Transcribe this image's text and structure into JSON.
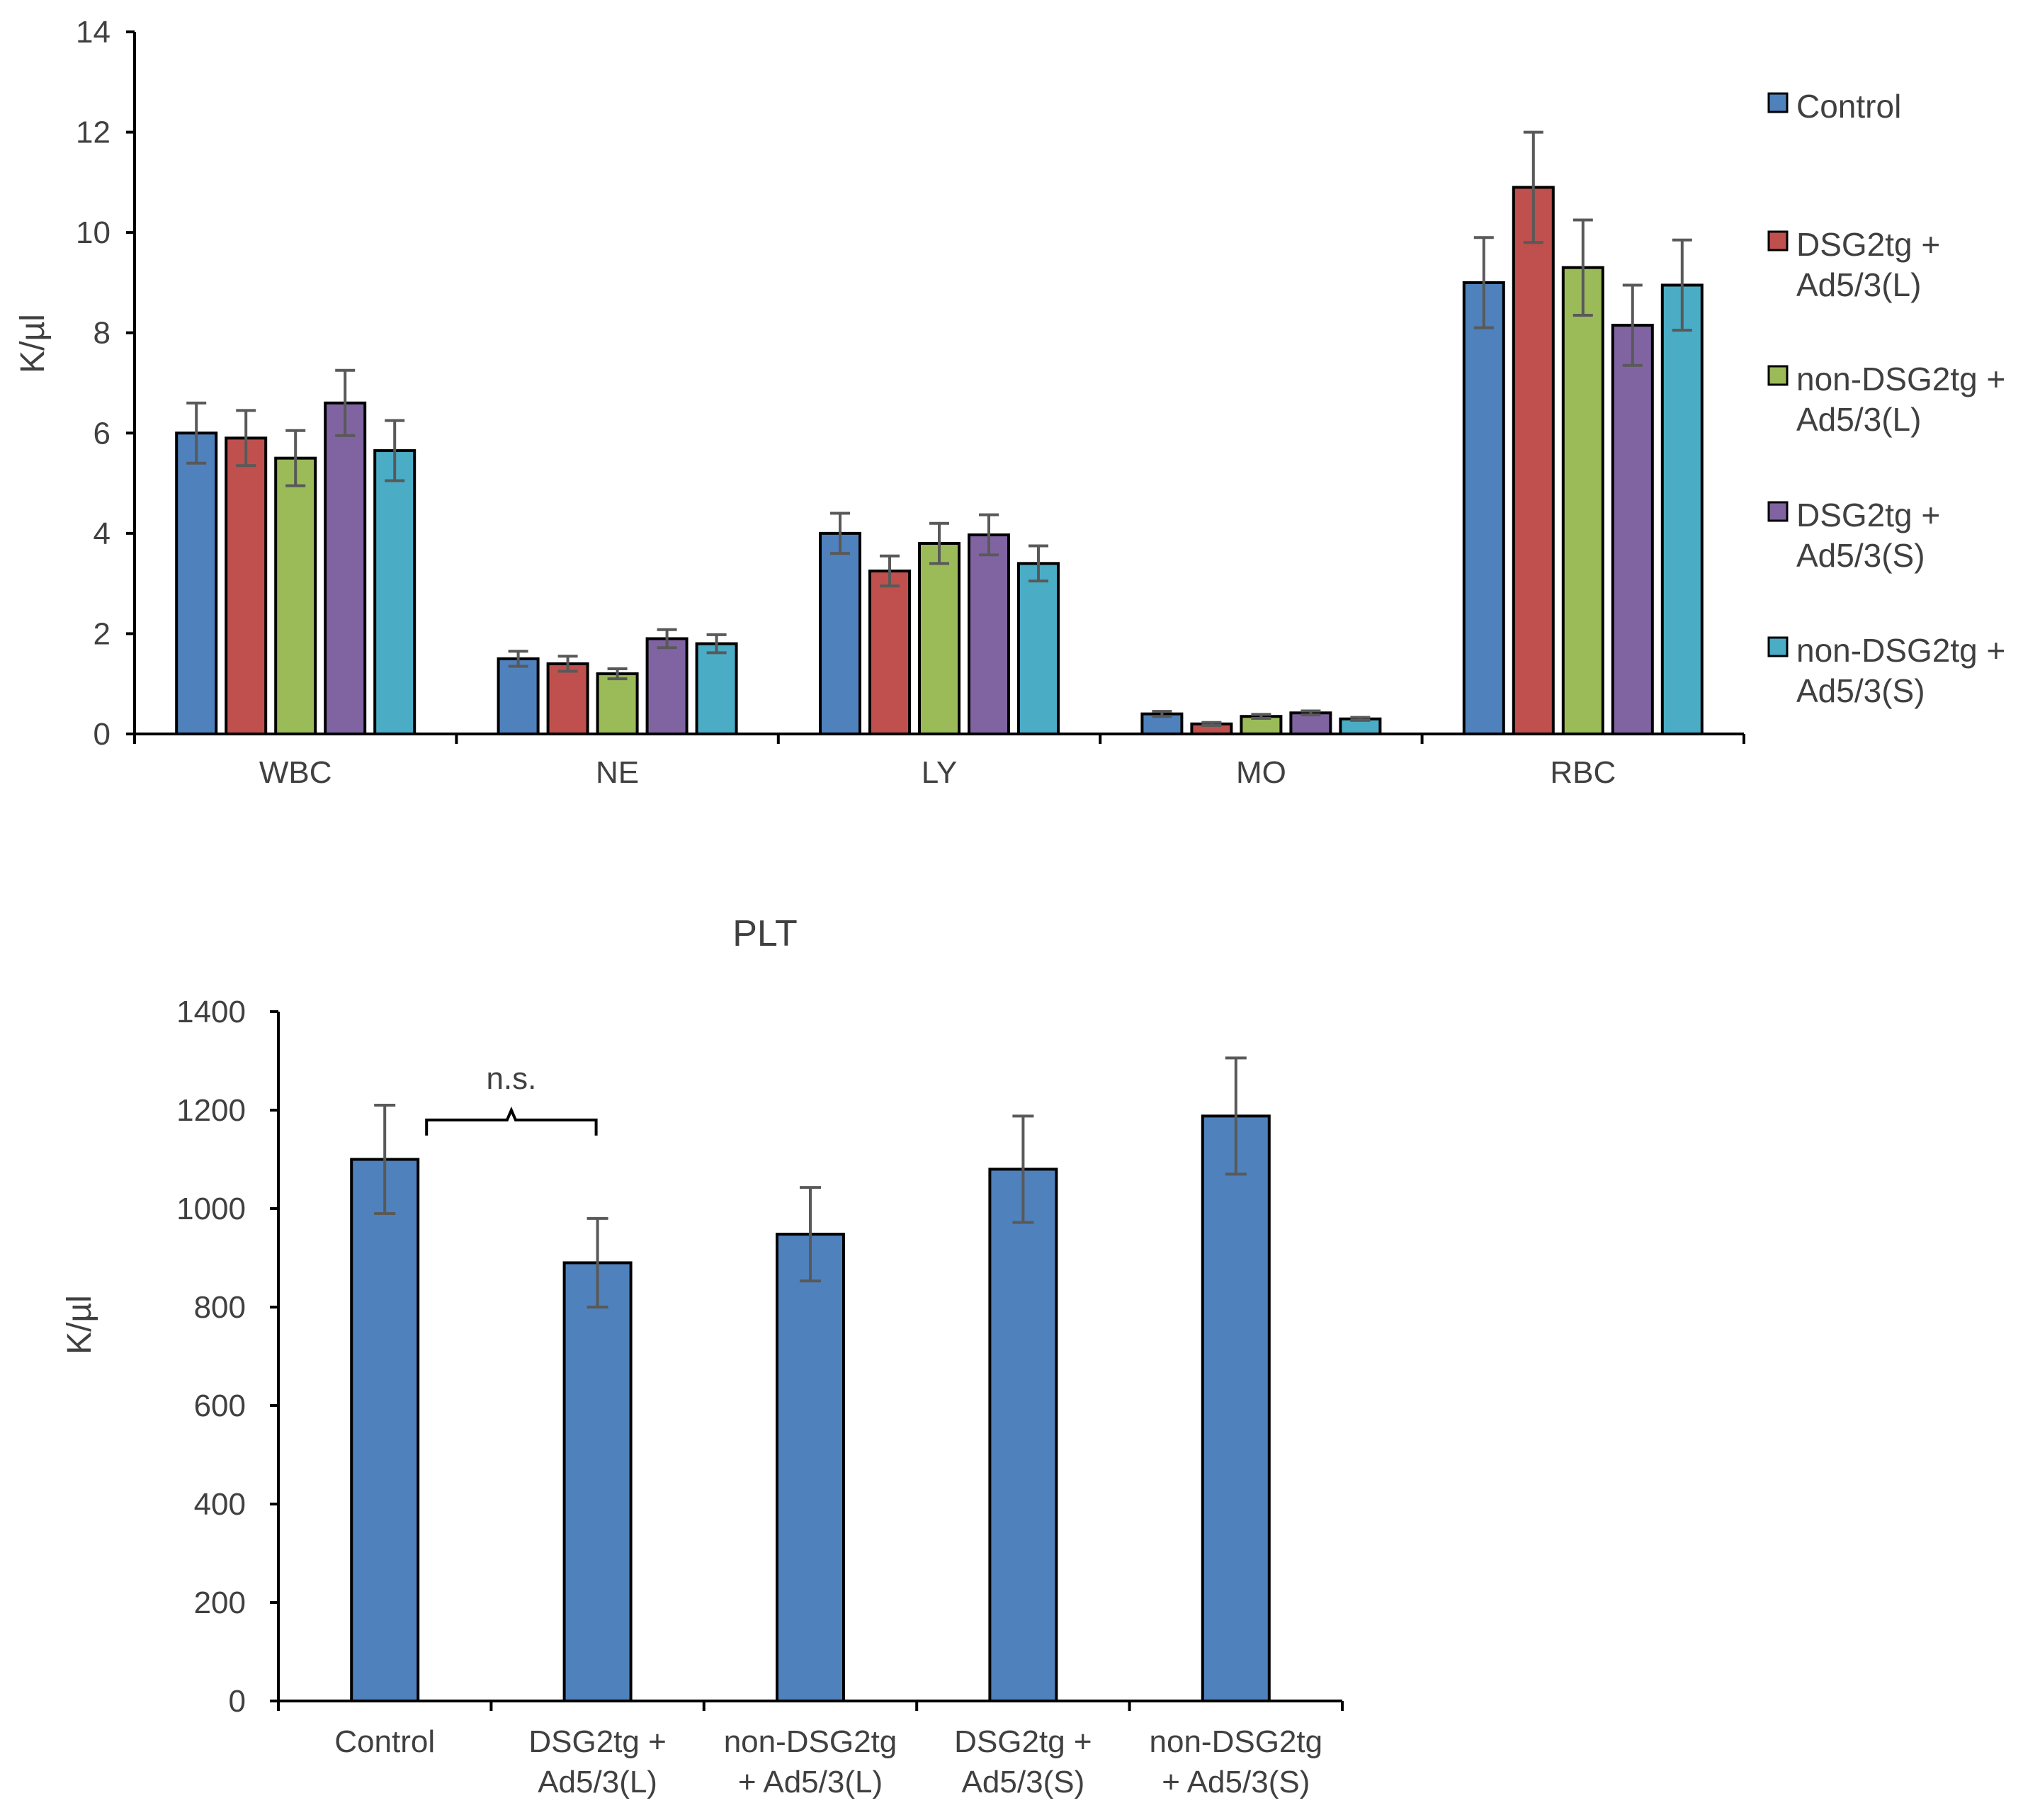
{
  "chart_data": [
    {
      "type": "bar",
      "title": "",
      "ylabel": "K/µl",
      "xlabel": "",
      "ylim": [
        0,
        14
      ],
      "yticks": [
        0,
        2,
        4,
        6,
        8,
        10,
        12,
        14
      ],
      "categories": [
        "WBC",
        "NE",
        "LY",
        "MO",
        "RBC"
      ],
      "legend_position": "right",
      "series": [
        {
          "name": "Control",
          "legend_lines": [
            "Control"
          ],
          "color": "#4f81bd",
          "values": [
            6.0,
            1.5,
            4.0,
            0.4,
            9.0
          ],
          "errors": [
            0.6,
            0.15,
            0.4,
            0.05,
            0.9
          ]
        },
        {
          "name": "DSG2tg + Ad5/3(L)",
          "legend_lines": [
            "DSG2tg +",
            "Ad5/3(L)"
          ],
          "color": "#c0504d",
          "values": [
            5.9,
            1.4,
            3.25,
            0.2,
            10.9
          ],
          "errors": [
            0.55,
            0.15,
            0.3,
            0.03,
            1.1
          ]
        },
        {
          "name": "non-DSG2tg + Ad5/3(L)",
          "legend_lines": [
            "non-DSG2tg +",
            "Ad5/3(L)"
          ],
          "color": "#9bbb59",
          "values": [
            5.5,
            1.2,
            3.8,
            0.35,
            9.3
          ],
          "errors": [
            0.55,
            0.1,
            0.4,
            0.04,
            0.95
          ]
        },
        {
          "name": "DSG2tg + Ad5/3(S)",
          "legend_lines": [
            "DSG2tg +",
            "Ad5/3(S)"
          ],
          "color": "#8064a2",
          "values": [
            6.6,
            1.9,
            3.97,
            0.42,
            8.15
          ],
          "errors": [
            0.65,
            0.18,
            0.4,
            0.04,
            0.8
          ]
        },
        {
          "name": "non-DSG2tg + Ad5/3(S)",
          "legend_lines": [
            "non-DSG2tg +",
            "Ad5/3(S)"
          ],
          "color": "#4bacc6",
          "values": [
            5.65,
            1.8,
            3.4,
            0.3,
            8.95
          ],
          "errors": [
            0.6,
            0.18,
            0.35,
            0.03,
            0.9
          ]
        }
      ]
    },
    {
      "type": "bar",
      "title": "PLT",
      "ylabel": "K/µl",
      "xlabel": "",
      "ylim": [
        0,
        1400
      ],
      "yticks": [
        0,
        200,
        400,
        600,
        800,
        1000,
        1200,
        1400
      ],
      "categories": [
        "Control",
        "DSG2tg + Ad5/3(L)",
        "non-DSG2tg + Ad5/3(L)",
        "DSG2tg + Ad5/3(S)",
        "non-DSG2tg + Ad5/3(S)"
      ],
      "category_lines": [
        [
          "Control"
        ],
        [
          "DSG2tg +",
          "Ad5/3(L)"
        ],
        [
          "non-DSG2tg",
          "+ Ad5/3(L)"
        ],
        [
          "DSG2tg +",
          "Ad5/3(S)"
        ],
        [
          "non-DSG2tg",
          "+ Ad5/3(S)"
        ]
      ],
      "color": "#4f81bd",
      "values": [
        1100,
        890,
        948,
        1080,
        1188
      ],
      "errors": [
        110,
        90,
        95,
        108,
        118
      ],
      "annotations": [
        {
          "text": "n.s.",
          "from_category": 0,
          "to_category": 1,
          "at_value": 1180
        }
      ]
    }
  ]
}
